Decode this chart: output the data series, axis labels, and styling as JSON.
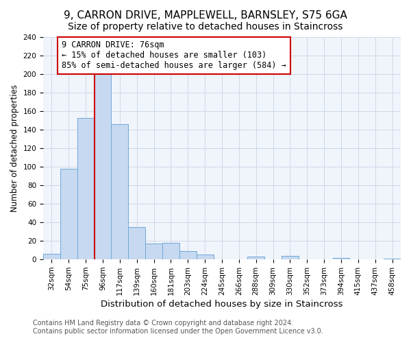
{
  "title": "9, CARRON DRIVE, MAPPLEWELL, BARNSLEY, S75 6GA",
  "subtitle": "Size of property relative to detached houses in Staincross",
  "xlabel": "Distribution of detached houses by size in Staincross",
  "ylabel": "Number of detached properties",
  "bar_labels": [
    "32sqm",
    "54sqm",
    "75sqm",
    "96sqm",
    "117sqm",
    "139sqm",
    "160sqm",
    "181sqm",
    "203sqm",
    "224sqm",
    "245sqm",
    "266sqm",
    "288sqm",
    "309sqm",
    "330sqm",
    "352sqm",
    "373sqm",
    "394sqm",
    "415sqm",
    "437sqm",
    "458sqm"
  ],
  "bar_values": [
    6,
    98,
    153,
    200,
    146,
    35,
    17,
    18,
    9,
    5,
    0,
    0,
    3,
    0,
    4,
    0,
    0,
    2,
    0,
    0,
    1
  ],
  "bar_color": "#c6d9f0",
  "bar_edge_color": "#6fa8d8",
  "ylim": [
    0,
    240
  ],
  "yticks": [
    0,
    20,
    40,
    60,
    80,
    100,
    120,
    140,
    160,
    180,
    200,
    220,
    240
  ],
  "red_line_index": 2,
  "red_line_color": "#cc0000",
  "annotation_line1": "9 CARRON DRIVE: 76sqm",
  "annotation_line2": "← 15% of detached houses are smaller (103)",
  "annotation_line3": "85% of semi-detached houses are larger (584) →",
  "annotation_box_color": "#ffffff",
  "annotation_box_edge": "#cc0000",
  "footer1": "Contains HM Land Registry data © Crown copyright and database right 2024.",
  "footer2": "Contains public sector information licensed under the Open Government Licence v3.0.",
  "title_fontsize": 11,
  "xlabel_fontsize": 9.5,
  "ylabel_fontsize": 8.5,
  "tick_fontsize": 7.5,
  "footer_fontsize": 7,
  "annotation_fontsize": 8.5,
  "grid_color": "#d0d8e8",
  "bg_color": "#f0f4fb",
  "fig_bg_color": "#ffffff"
}
